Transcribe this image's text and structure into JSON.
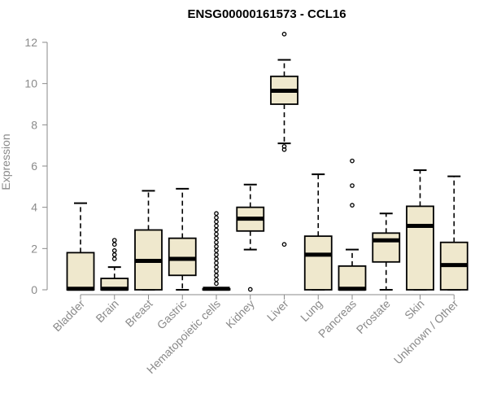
{
  "chart_data": {
    "type": "box",
    "title": "ENSG00000161573 - CCL16",
    "ylabel": "Expression",
    "xlabel": "",
    "ylim": [
      0,
      12.5
    ],
    "yticks": [
      0,
      2,
      4,
      6,
      8,
      10,
      12
    ],
    "box_fill": "#efe8cd",
    "box_stroke": "#000000",
    "grid": false,
    "legend": "none",
    "categories": [
      "Bladder",
      "Brain",
      "Breast",
      "Gastric",
      "Hematopoietic cells",
      "Kidney",
      "Liver",
      "Lung",
      "Pancreas",
      "Prostate",
      "Skin",
      "Unknown / Other"
    ],
    "boxes": [
      {
        "category": "Bladder",
        "whisker_low": 0,
        "q1": 0,
        "median": 0.05,
        "q3": 1.8,
        "whisker_high": 4.2,
        "outliers": []
      },
      {
        "category": "Brain",
        "whisker_low": 0,
        "q1": 0,
        "median": 0.05,
        "q3": 0.55,
        "whisker_high": 1.1,
        "outliers": [
          1.5,
          1.7,
          1.9,
          2.2,
          2.4
        ]
      },
      {
        "category": "Breast",
        "whisker_low": 0,
        "q1": 0,
        "median": 1.4,
        "q3": 2.9,
        "whisker_high": 4.8,
        "outliers": []
      },
      {
        "category": "Gastric",
        "whisker_low": 0,
        "q1": 0.7,
        "median": 1.5,
        "q3": 2.5,
        "whisker_high": 4.9,
        "outliers": []
      },
      {
        "category": "Hematopoietic cells",
        "whisker_low": 0,
        "q1": 0,
        "median": 0.05,
        "q3": 0.05,
        "whisker_high": 0.1,
        "outliers": [
          0.3,
          0.5,
          0.7,
          0.9,
          1.1,
          1.3,
          1.5,
          1.7,
          1.9,
          2.1,
          2.3,
          2.5,
          2.7,
          2.9,
          3.1,
          3.3,
          3.5,
          3.7
        ]
      },
      {
        "category": "Kidney",
        "whisker_low": 1.95,
        "q1": 2.85,
        "median": 3.45,
        "q3": 4.0,
        "whisker_high": 5.1,
        "outliers": [
          0.02
        ]
      },
      {
        "category": "Liver",
        "whisker_low": 7.1,
        "q1": 9.0,
        "median": 9.65,
        "q3": 10.35,
        "whisker_high": 11.15,
        "outliers": [
          2.2,
          6.8,
          6.95,
          12.4
        ]
      },
      {
        "category": "Lung",
        "whisker_low": 0,
        "q1": 0,
        "median": 1.7,
        "q3": 2.6,
        "whisker_high": 5.6,
        "outliers": []
      },
      {
        "category": "Pancreas",
        "whisker_low": 0,
        "q1": 0,
        "median": 0.05,
        "q3": 1.15,
        "whisker_high": 1.95,
        "outliers": [
          4.1,
          5.05,
          6.25
        ]
      },
      {
        "category": "Prostate",
        "whisker_low": 0,
        "q1": 1.35,
        "median": 2.4,
        "q3": 2.75,
        "whisker_high": 3.7,
        "outliers": []
      },
      {
        "category": "Skin",
        "whisker_low": 0,
        "q1": 0,
        "median": 3.1,
        "q3": 4.05,
        "whisker_high": 5.8,
        "outliers": []
      },
      {
        "category": "Unknown / Other",
        "whisker_low": 0,
        "q1": 0,
        "median": 1.2,
        "q3": 2.3,
        "whisker_high": 5.5,
        "outliers": []
      }
    ]
  }
}
